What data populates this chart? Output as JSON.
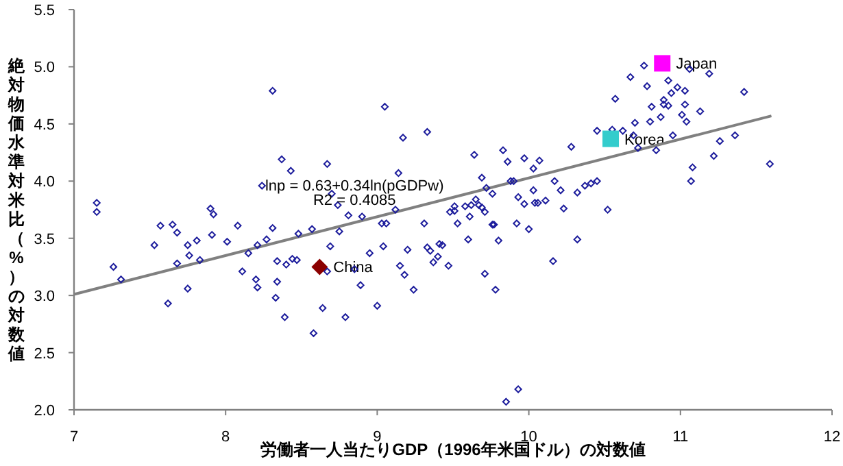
{
  "chart_data": {
    "type": "scatter",
    "xlabel": "労働者一人当たりGDP（1996年米国ドル）の対数値",
    "ylabel": "絶対物価水準対米比（%）の対数値",
    "xlim": [
      7,
      12
    ],
    "xticks": [
      7,
      8,
      9,
      10,
      11,
      12
    ],
    "ylim": [
      2,
      5.5
    ],
    "yticks": [
      {
        "value": 2,
        "label": "2.0"
      },
      {
        "value": 2.5,
        "label": "2.5"
      },
      {
        "value": 3,
        "label": "3.0"
      },
      {
        "value": 3.5,
        "label": "3.5"
      },
      {
        "value": 4,
        "label": "4.0"
      },
      {
        "value": 4.5,
        "label": "4.5"
      },
      {
        "value": 5,
        "label": "5.0"
      },
      {
        "value": 5.5,
        "label": "5.5"
      }
    ],
    "grid": false,
    "legend": false,
    "annotations": [
      "lnp = 0.63+0.34ln(pGDPw)",
      "R2 = 0.4085"
    ],
    "series": [
      {
        "type": "scatter",
        "color": "#1c1c9c",
        "marker": "diamond",
        "x": [
          8.31,
          8.37,
          8.43,
          8.24,
          7.15,
          7.15,
          7.9,
          7.92,
          7.57,
          7.65,
          7.68,
          8.08,
          8.31,
          7.53,
          7.75,
          7.81,
          7.91,
          8.01,
          8.21,
          8.27,
          8.48,
          8.57,
          8.15,
          7.76,
          7.68,
          7.83,
          7.26,
          7.31,
          8.11,
          8.34,
          8.4,
          8.44,
          8.47,
          8.2,
          8.21,
          8.34,
          7.75,
          7.62,
          8.33,
          8.39,
          8.64,
          8.58,
          9.05,
          9.17,
          9.33,
          8.67,
          8.7,
          8.74,
          8.81,
          8.9,
          9.14,
          9.12,
          9.03,
          9.06,
          9.31,
          8.75,
          8.69,
          8.95,
          9.04,
          9.2,
          9.33,
          9.35,
          9.41,
          9.43,
          9.37,
          9.4,
          9.47,
          9.15,
          9.18,
          9.24,
          8.85,
          8.89,
          8.67,
          8.79,
          9.0,
          9.64,
          9.69,
          9.72,
          9.76,
          9.48,
          9.51,
          9.51,
          9.53,
          9.58,
          9.61,
          9.62,
          9.65,
          9.67,
          9.69,
          9.71,
          9.76,
          9.77,
          9.8,
          9.6,
          9.71,
          9.78,
          9.83,
          9.86,
          9.88,
          9.9,
          9.93,
          9.97,
          10.03,
          10.07,
          9.97,
          10.0,
          9.92,
          10.03,
          10.04,
          10.06,
          10.11,
          9.85,
          9.93,
          10.17,
          10.21,
          10.23,
          10.16,
          10.28,
          10.32,
          10.32,
          10.37,
          10.41,
          10.45,
          10.45,
          10.52,
          10.55,
          10.57,
          10.62,
          10.67,
          10.69,
          10.72,
          10.7,
          10.76,
          10.78,
          10.8,
          10.81,
          10.84,
          10.87,
          10.89,
          10.89,
          10.92,
          10.92,
          10.94,
          10.95,
          10.98,
          11.01,
          11.03,
          11.03,
          11.04,
          11.06,
          11.08,
          11.07,
          11.13,
          11.19,
          11.22,
          11.26,
          11.36,
          11.42,
          11.59
        ],
        "values": [
          4.79,
          4.19,
          4.09,
          3.96,
          3.81,
          3.73,
          3.76,
          3.71,
          3.61,
          3.62,
          3.55,
          3.61,
          3.59,
          3.44,
          3.44,
          3.48,
          3.53,
          3.47,
          3.44,
          3.49,
          3.54,
          3.58,
          3.37,
          3.35,
          3.28,
          3.31,
          3.25,
          3.14,
          3.21,
          3.3,
          3.27,
          3.32,
          3.31,
          3.14,
          3.07,
          3.12,
          3.06,
          2.93,
          2.98,
          2.81,
          2.89,
          2.67,
          4.65,
          4.38,
          4.43,
          4.15,
          3.89,
          3.79,
          3.7,
          3.69,
          4.07,
          3.75,
          3.63,
          3.63,
          3.63,
          3.56,
          3.43,
          3.37,
          3.43,
          3.4,
          3.42,
          3.39,
          3.45,
          3.44,
          3.29,
          3.34,
          3.26,
          3.26,
          3.18,
          3.05,
          3.23,
          3.09,
          3.21,
          2.81,
          2.91,
          4.23,
          4.03,
          3.94,
          3.89,
          3.73,
          3.78,
          3.74,
          3.63,
          3.78,
          3.69,
          3.79,
          3.84,
          3.79,
          3.77,
          3.73,
          3.62,
          3.62,
          3.48,
          3.49,
          3.19,
          3.05,
          4.27,
          4.17,
          4.0,
          4.0,
          3.86,
          4.2,
          4.11,
          4.18,
          3.8,
          3.58,
          3.63,
          3.92,
          3.81,
          3.81,
          3.83,
          2.07,
          2.18,
          4.0,
          3.92,
          3.76,
          3.3,
          4.3,
          3.49,
          3.9,
          3.96,
          3.98,
          4.0,
          4.44,
          3.75,
          4.45,
          4.72,
          4.44,
          4.91,
          4.4,
          4.29,
          4.51,
          5.01,
          4.83,
          4.52,
          4.65,
          4.27,
          4.56,
          4.71,
          4.67,
          4.88,
          4.66,
          4.77,
          4.4,
          4.82,
          4.58,
          4.79,
          4.67,
          4.52,
          4.98,
          4.12,
          4.0,
          4.61,
          4.94,
          4.22,
          4.35,
          4.4,
          4.78,
          4.15
        ]
      },
      {
        "type": "line",
        "color": "#808080",
        "x": [
          7,
          11.6
        ],
        "values": [
          3.01,
          4.57
        ]
      },
      {
        "type": "scatter",
        "name": "China",
        "color": "#8b0000",
        "marker": "diamond",
        "x": [
          8.62
        ],
        "values": [
          3.25
        ]
      },
      {
        "type": "scatter",
        "name": "Korea",
        "color": "#33cccc",
        "marker": "square",
        "x": [
          10.54
        ],
        "values": [
          4.37
        ]
      },
      {
        "type": "scatter",
        "name": "Japan",
        "color": "#ff00ff",
        "marker": "square",
        "x": [
          10.88
        ],
        "values": [
          5.03
        ]
      }
    ]
  }
}
